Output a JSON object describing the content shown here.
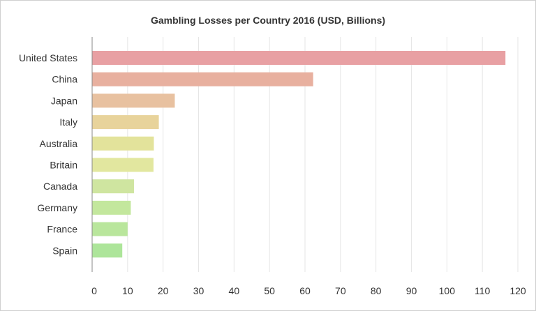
{
  "chart_data": {
    "type": "bar",
    "orientation": "horizontal",
    "title": "Gambling Losses per Country 2016 (USD, Billions)",
    "xlabel": "",
    "ylabel": "",
    "categories": [
      "United States",
      "China",
      "Japan",
      "Italy",
      "Australia",
      "Britain",
      "Canada",
      "Germany",
      "France",
      "Spain"
    ],
    "values": [
      116.5,
      62.3,
      23.3,
      18.8,
      17.4,
      17.3,
      11.8,
      10.9,
      10.0,
      8.5
    ],
    "colors": [
      "#e8a0a3",
      "#e8b09f",
      "#e8c1a0",
      "#e8d39b",
      "#e3e39b",
      "#e2e79f",
      "#cfe5a0",
      "#c3e79d",
      "#b9e69c",
      "#ade59a"
    ],
    "xlim": [
      0,
      120
    ],
    "ticks": [
      0,
      10,
      20,
      30,
      40,
      50,
      60,
      70,
      80,
      90,
      100,
      110,
      120
    ],
    "grid": true
  }
}
